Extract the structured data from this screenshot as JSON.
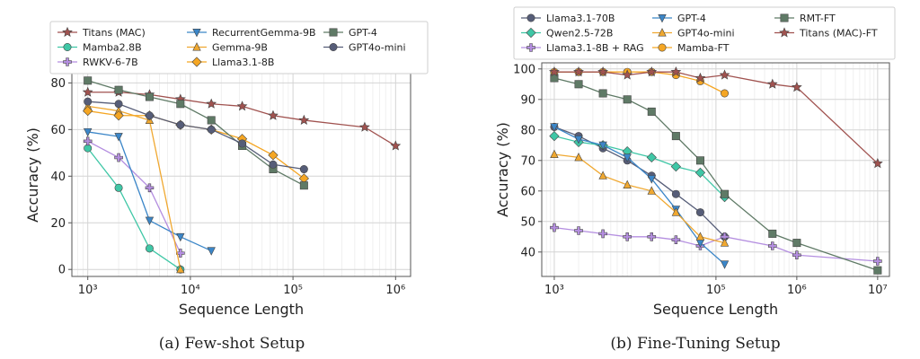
{
  "chart_data": [
    {
      "type": "line",
      "caption": "(a) Few-shot Setup",
      "xlabel": "Sequence Length",
      "ylabel": "Accuracy (%)",
      "xscale": "log",
      "xlim": [
        700,
        1400000
      ],
      "ylim": [
        -3,
        84
      ],
      "xticks": [
        1000,
        10000,
        100000,
        1000000
      ],
      "xtick_labels": [
        "10³",
        "10⁴",
        "10⁵",
        "10⁶"
      ],
      "yticks": [
        0,
        20,
        40,
        60,
        80
      ],
      "ytick_labels": [
        "0",
        "20",
        "40",
        "60",
        "80"
      ],
      "grid": true,
      "legend": {
        "position": "top",
        "columns": 3
      },
      "series": [
        {
          "name": "Titans (MAC)",
          "color": "#a0524f",
          "marker": "star",
          "x": [
            1000,
            2000,
            4000,
            8000,
            16000,
            32000,
            64000,
            128000,
            500000,
            1000000
          ],
          "y": [
            76,
            76,
            75,
            73,
            71,
            70,
            66,
            64,
            61,
            53
          ]
        },
        {
          "name": "Mamba2.8B",
          "color": "#3fc7a6",
          "marker": "circle",
          "x": [
            1000,
            2000,
            4000,
            8000
          ],
          "y": [
            52,
            35,
            9,
            0
          ]
        },
        {
          "name": "RWKV-6-7B",
          "color": "#b48ee0",
          "marker": "plus",
          "x": [
            1000,
            2000,
            4000,
            8000
          ],
          "y": [
            55,
            48,
            35,
            7
          ]
        },
        {
          "name": "RecurrentGemma-9B",
          "color": "#3b86c8",
          "marker": "triangle-down",
          "x": [
            1000,
            2000,
            4000,
            8000,
            16000
          ],
          "y": [
            59,
            57,
            21,
            14,
            8
          ]
        },
        {
          "name": "Gemma-9B",
          "color": "#f0a830",
          "marker": "triangle-up",
          "x": [
            1000,
            2000,
            4000,
            8000
          ],
          "y": [
            70,
            68,
            64,
            0
          ]
        },
        {
          "name": "Llama3.1-8B",
          "color": "#f5a623",
          "marker": "diamond",
          "x": [
            1000,
            2000,
            4000,
            8000,
            16000,
            32000,
            64000,
            128000
          ],
          "y": [
            68,
            66,
            66,
            62,
            60,
            56,
            49,
            39
          ]
        },
        {
          "name": "GPT-4",
          "color": "#5f7a66",
          "marker": "square",
          "x": [
            1000,
            2000,
            4000,
            8000,
            16000,
            32000,
            64000,
            128000
          ],
          "y": [
            81,
            77,
            74,
            71,
            64,
            53,
            43,
            36
          ]
        },
        {
          "name": "GPT4o-mini",
          "color": "#565d78",
          "marker": "circle",
          "x": [
            1000,
            2000,
            4000,
            8000,
            16000,
            32000,
            64000,
            128000
          ],
          "y": [
            72,
            71,
            66,
            62,
            60,
            54,
            45,
            43
          ]
        }
      ]
    },
    {
      "type": "line",
      "caption": "(b) Fine-Tuning Setup",
      "xlabel": "Sequence Length",
      "ylabel": "Accuracy (%)",
      "xscale": "log",
      "xlim": [
        700,
        14000000
      ],
      "ylim": [
        32,
        102
      ],
      "xticks": [
        1000,
        100000,
        1000000,
        10000000
      ],
      "xtick_labels": [
        "10³",
        "10⁵",
        "10⁶",
        "10⁷"
      ],
      "yticks": [
        40,
        50,
        60,
        70,
        80,
        90,
        100
      ],
      "ytick_labels": [
        "40",
        "50",
        "60",
        "70",
        "80",
        "90",
        "100"
      ],
      "grid": true,
      "legend": {
        "position": "top",
        "columns": 3
      },
      "series": [
        {
          "name": "Llama3.1-70B",
          "color": "#565d78",
          "marker": "circle",
          "x": [
            1000,
            2000,
            4000,
            8000,
            16000,
            32000,
            64000,
            128000
          ],
          "y": [
            81,
            78,
            74,
            70,
            65,
            59,
            53,
            45
          ]
        },
        {
          "name": "Qwen2.5-72B",
          "color": "#3fc7a6",
          "marker": "diamond",
          "x": [
            1000,
            2000,
            4000,
            8000,
            16000,
            32000,
            64000,
            128000
          ],
          "y": [
            78,
            76,
            75,
            73,
            71,
            68,
            66,
            58
          ]
        },
        {
          "name": "Llama3.1-8B + RAG",
          "color": "#b48ee0",
          "marker": "plus",
          "x": [
            1000,
            2000,
            4000,
            8000,
            16000,
            32000,
            64000,
            128000,
            500000,
            1000000,
            10000000
          ],
          "y": [
            48,
            47,
            46,
            45,
            45,
            44,
            42,
            45,
            42,
            39,
            37
          ]
        },
        {
          "name": "GPT-4",
          "color": "#3b86c8",
          "marker": "triangle-down",
          "x": [
            1000,
            2000,
            4000,
            8000,
            16000,
            32000,
            64000,
            128000
          ],
          "y": [
            81,
            77,
            75,
            71,
            64,
            54,
            43,
            36
          ]
        },
        {
          "name": "GPT4o-mini",
          "color": "#f0a830",
          "marker": "triangle-up",
          "x": [
            1000,
            2000,
            4000,
            8000,
            16000,
            32000,
            64000,
            128000
          ],
          "y": [
            72,
            71,
            65,
            62,
            60,
            53,
            45,
            43
          ]
        },
        {
          "name": "Mamba-FT",
          "color": "#f5a623",
          "marker": "circle",
          "x": [
            1000,
            2000,
            4000,
            8000,
            16000,
            32000,
            64000,
            128000
          ],
          "y": [
            99,
            99,
            99,
            99,
            99,
            98,
            96,
            92
          ]
        },
        {
          "name": "RMT-FT",
          "color": "#5f7a66",
          "marker": "square",
          "x": [
            1000,
            2000,
            4000,
            8000,
            16000,
            32000,
            64000,
            128000,
            500000,
            1000000,
            10000000
          ],
          "y": [
            97,
            95,
            92,
            90,
            86,
            78,
            70,
            59,
            46,
            43,
            34
          ]
        },
        {
          "name": "Titans (MAC)-FT",
          "color": "#a0524f",
          "marker": "star",
          "x": [
            1000,
            2000,
            4000,
            8000,
            16000,
            32000,
            64000,
            128000,
            500000,
            1000000,
            10000000
          ],
          "y": [
            99,
            99,
            99,
            98,
            99,
            99,
            97,
            98,
            95,
            94,
            69
          ]
        }
      ]
    }
  ]
}
